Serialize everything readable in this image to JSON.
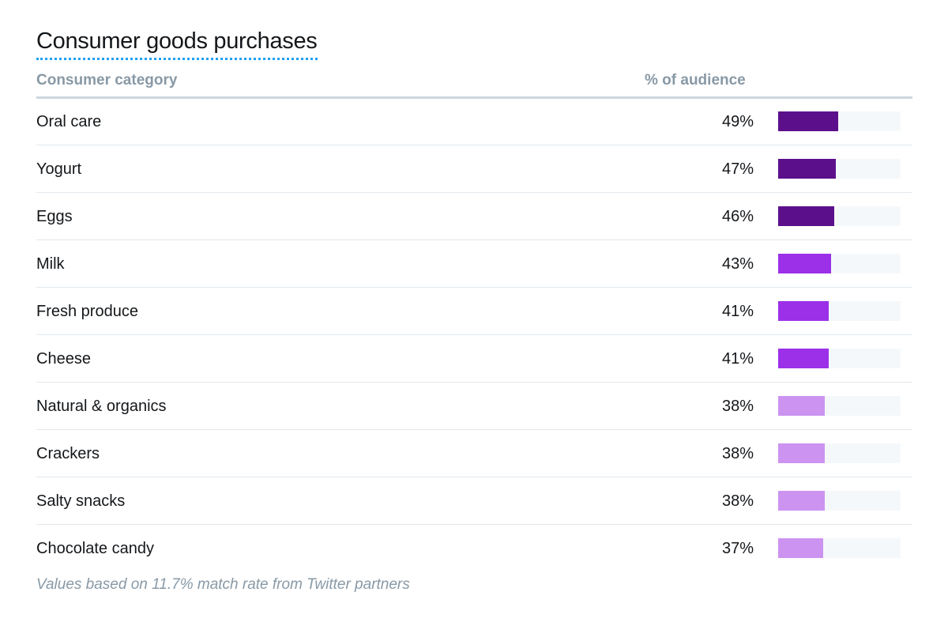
{
  "title": "Consumer goods purchases",
  "columns": {
    "category": "Consumer category",
    "percent": "% of audience"
  },
  "footnote": "Values based on 11.7% match rate from Twitter partners",
  "colors": {
    "dark": "#5c0f8b",
    "medium": "#9b30e8",
    "light": "#cc93f0",
    "track": "#f5f8fa"
  },
  "chart_data": {
    "type": "bar",
    "orientation": "horizontal",
    "title": "Consumer goods purchases",
    "xlabel": "% of audience",
    "ylabel": "Consumer category",
    "categories": [
      "Oral care",
      "Yogurt",
      "Eggs",
      "Milk",
      "Fresh produce",
      "Cheese",
      "Natural & organics",
      "Crackers",
      "Salty snacks",
      "Chocolate candy"
    ],
    "values": [
      49,
      47,
      46,
      43,
      41,
      41,
      38,
      38,
      38,
      37
    ],
    "value_labels": [
      "49%",
      "47%",
      "46%",
      "43%",
      "41%",
      "41%",
      "38%",
      "38%",
      "38%",
      "37%"
    ],
    "color_groups": [
      "dark",
      "dark",
      "dark",
      "medium",
      "medium",
      "medium",
      "light",
      "light",
      "light",
      "light"
    ],
    "xlim": [
      0,
      100
    ],
    "grid": false,
    "legend": "none"
  }
}
